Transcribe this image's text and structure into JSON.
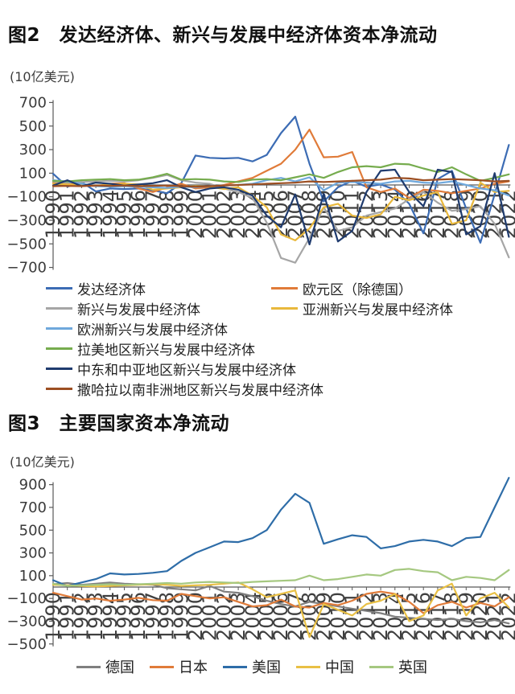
{
  "chart_data": [
    {
      "type": "line",
      "figure_label": "图2",
      "title": "图2　发达经济体、新兴与发展中经济体资本净流动",
      "ylabel": "(10亿美元)",
      "xlabel": "",
      "grid": false,
      "legend_position": "bottom-left",
      "ylim": [
        -700,
        700
      ],
      "yticks": [
        700,
        500,
        300,
        100,
        -100,
        -300,
        -500,
        -700
      ],
      "x": [
        "1990",
        "1991",
        "1992",
        "1993",
        "1994",
        "1995",
        "1996",
        "1997",
        "1998",
        "1999",
        "2000",
        "2001",
        "2002",
        "2003",
        "2004",
        "2005",
        "2006",
        "2007",
        "2008",
        "2009",
        "2010",
        "2011",
        "2012",
        "2013",
        "2014",
        "2015",
        "2016",
        "2017",
        "2018",
        "2019",
        "2020",
        "2021",
        "2022"
      ],
      "series": [
        {
          "name": "发达经济体",
          "color": "#3C6CB4",
          "values": [
            95,
            -15,
            25,
            -55,
            -30,
            -35,
            -30,
            -45,
            -70,
            15,
            250,
            230,
            225,
            230,
            200,
            255,
            440,
            580,
            180,
            -140,
            -20,
            35,
            -15,
            5,
            -40,
            -160,
            -410,
            50,
            120,
            -200,
            -490,
            -80,
            340
          ]
        },
        {
          "name": "欧元区（除德国）",
          "color": "#E07B39",
          "values": [
            20,
            10,
            0,
            -10,
            10,
            15,
            -30,
            -60,
            -20,
            10,
            -30,
            -20,
            0,
            30,
            60,
            120,
            180,
            300,
            470,
            235,
            240,
            280,
            -20,
            -60,
            -30,
            -110,
            -40,
            -50,
            -70,
            -50,
            -30,
            10,
            30
          ]
        },
        {
          "name": "新兴与发展中经济体",
          "color": "#A6A6A6",
          "values": [
            30,
            20,
            25,
            30,
            35,
            30,
            40,
            60,
            85,
            40,
            20,
            10,
            -30,
            -60,
            -110,
            -320,
            -620,
            -660,
            -450,
            -190,
            -390,
            -360,
            -260,
            -230,
            -200,
            -120,
            -60,
            -150,
            -220,
            -205,
            -180,
            -330,
            -615
          ]
        },
        {
          "name": "亚洲新兴与发展中经济体",
          "color": "#E9B83C",
          "values": [
            10,
            5,
            0,
            -5,
            0,
            10,
            5,
            -40,
            -30,
            -20,
            -10,
            -15,
            -35,
            -20,
            -90,
            -190,
            -420,
            -470,
            -370,
            -190,
            -160,
            -260,
            -280,
            -250,
            -100,
            -130,
            -90,
            -60,
            -330,
            -300,
            20,
            -60,
            -50
          ]
        },
        {
          "name": "欧洲新兴与发展中经济体",
          "color": "#6FA8DC",
          "values": [
            40,
            30,
            10,
            -10,
            -15,
            -10,
            -15,
            -20,
            -25,
            -15,
            -20,
            -10,
            -5,
            0,
            10,
            40,
            60,
            30,
            65,
            -45,
            20,
            25,
            20,
            10,
            30,
            35,
            20,
            15,
            30,
            0,
            -30,
            -45,
            -90
          ]
        },
        {
          "name": "拉美地区新兴与发展中经济体",
          "color": "#76AC4E",
          "values": [
            35,
            30,
            40,
            45,
            50,
            40,
            45,
            65,
            95,
            45,
            50,
            45,
            30,
            25,
            45,
            50,
            40,
            65,
            90,
            60,
            110,
            150,
            160,
            150,
            180,
            175,
            140,
            110,
            150,
            90,
            35,
            60,
            90
          ]
        },
        {
          "name": "中东和中亚地区新兴与发展中经济体",
          "color": "#1F3B6E",
          "values": [
            -5,
            40,
            -10,
            20,
            10,
            -5,
            5,
            15,
            40,
            -20,
            -60,
            -30,
            -20,
            -40,
            -90,
            -260,
            -360,
            -80,
            -505,
            -75,
            -480,
            -390,
            -60,
            120,
            130,
            -60,
            -180,
            130,
            110,
            -420,
            -350,
            100,
            -440
          ]
        },
        {
          "name": "撒哈拉以南非洲地区新兴与发展中经济体",
          "color": "#9C4F22",
          "values": [
            -10,
            -8,
            -10,
            -5,
            -8,
            -5,
            -10,
            -8,
            -5,
            -10,
            -15,
            -10,
            -5,
            0,
            5,
            10,
            15,
            20,
            30,
            25,
            30,
            35,
            40,
            45,
            60,
            55,
            40,
            45,
            50,
            45,
            40,
            30,
            35
          ]
        }
      ]
    },
    {
      "type": "line",
      "figure_label": "图3",
      "title": "图3　主要国家资本净流动",
      "ylabel": "(10亿美元)",
      "xlabel": "",
      "grid": false,
      "legend_position": "bottom",
      "ylim": [
        -500,
        900
      ],
      "yticks": [
        900,
        700,
        500,
        300,
        100,
        -100,
        -300,
        -500
      ],
      "x": [
        "1990",
        "1991",
        "1992",
        "1993",
        "1994",
        "1995",
        "1996",
        "1997",
        "1998",
        "1999",
        "2000",
        "2001",
        "2002",
        "2003",
        "2004",
        "2005",
        "2006",
        "2007",
        "2008",
        "2009",
        "2010",
        "2011",
        "2012",
        "2013",
        "2014",
        "2015",
        "2016",
        "2017",
        "2018",
        "2019",
        "2020",
        "2021",
        "2022"
      ],
      "series": [
        {
          "name": "德国",
          "color": "#7F7F7F",
          "values": [
            25,
            35,
            20,
            30,
            40,
            30,
            25,
            20,
            -10,
            -20,
            -30,
            10,
            -40,
            -50,
            -80,
            -120,
            -150,
            -170,
            -130,
            -150,
            -170,
            -190,
            -210,
            -230,
            -260,
            -270,
            -280,
            -290,
            -280,
            -300,
            -310,
            -290,
            -320
          ]
        },
        {
          "name": "日本",
          "color": "#E07B39",
          "values": [
            -50,
            -80,
            -110,
            -100,
            -120,
            -110,
            -95,
            -115,
            -120,
            -60,
            -80,
            -100,
            -90,
            -130,
            -170,
            -160,
            -110,
            -170,
            -180,
            -140,
            -160,
            -120,
            -60,
            -40,
            -60,
            -130,
            -230,
            -160,
            -130,
            -180,
            -140,
            -170,
            -90
          ]
        },
        {
          "name": "美国",
          "color": "#2E6DA8",
          "values": [
            60,
            10,
            40,
            70,
            120,
            110,
            115,
            125,
            140,
            230,
            300,
            350,
            400,
            395,
            430,
            500,
            680,
            820,
            740,
            380,
            420,
            455,
            440,
            340,
            360,
            400,
            415,
            400,
            360,
            430,
            440,
            700,
            960
          ]
        },
        {
          "name": "中国",
          "color": "#E9C045",
          "values": [
            20,
            15,
            10,
            5,
            10,
            15,
            20,
            25,
            20,
            10,
            15,
            20,
            30,
            40,
            -20,
            -90,
            -60,
            -30,
            -440,
            -150,
            -200,
            -250,
            -150,
            -120,
            -60,
            -300,
            -250,
            -30,
            30,
            -250,
            -100,
            -50,
            -180
          ]
        },
        {
          "name": "英国",
          "color": "#A5C880",
          "values": [
            30,
            10,
            15,
            20,
            25,
            20,
            25,
            30,
            35,
            30,
            40,
            45,
            40,
            35,
            45,
            50,
            55,
            60,
            100,
            60,
            70,
            90,
            110,
            100,
            150,
            160,
            140,
            130,
            60,
            90,
            80,
            60,
            150
          ]
        }
      ]
    }
  ]
}
